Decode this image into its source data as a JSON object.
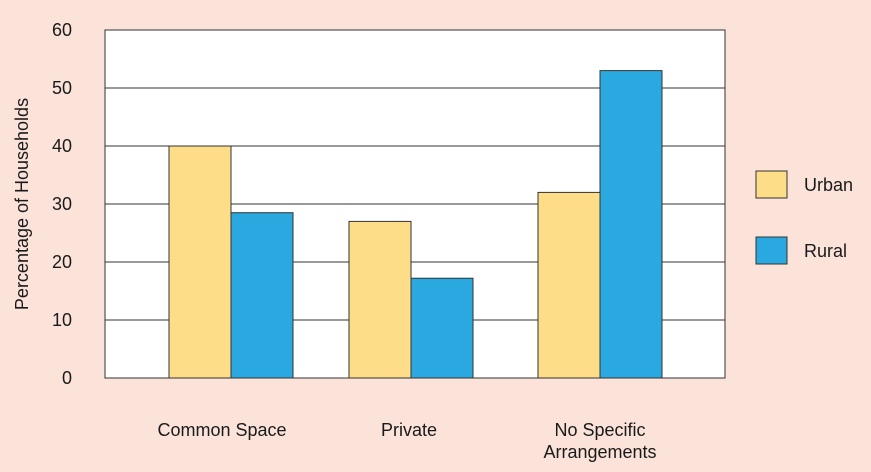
{
  "chart_data": {
    "type": "bar",
    "title": "",
    "xlabel": "",
    "ylabel": "Percentage of Households",
    "ylim": [
      0,
      60
    ],
    "yticks": [
      0,
      10,
      20,
      30,
      40,
      50,
      60
    ],
    "grid": "horizontal",
    "legend_position": "right",
    "categories": [
      [
        "Common Space"
      ],
      [
        "Private"
      ],
      [
        "No Specific",
        "Arrangements"
      ]
    ],
    "series": [
      {
        "name": "Urban",
        "color": "#fddd87",
        "values": [
          40,
          27,
          32
        ]
      },
      {
        "name": "Rural",
        "color": "#29a9e0",
        "values": [
          28.5,
          17.2,
          53
        ]
      }
    ]
  }
}
